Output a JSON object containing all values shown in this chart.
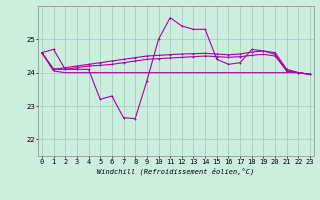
{
  "xlabel": "Windchill (Refroidissement éolien,°C)",
  "background_color": "#cceedd",
  "grid_color": "#aacccc",
  "line_color": "#aa00aa",
  "x_ticks": [
    0,
    1,
    2,
    3,
    4,
    5,
    6,
    7,
    8,
    9,
    10,
    11,
    12,
    13,
    14,
    15,
    16,
    17,
    18,
    19,
    20,
    21,
    22,
    23
  ],
  "y_ticks": [
    22,
    23,
    24,
    25
  ],
  "ylim": [
    21.5,
    26.0
  ],
  "xlim": [
    -0.3,
    23.3
  ],
  "line1": [
    24.6,
    24.7,
    24.1,
    24.1,
    24.1,
    23.2,
    23.3,
    22.65,
    22.62,
    23.75,
    25.0,
    25.65,
    25.4,
    25.3,
    25.3,
    24.4,
    24.25,
    24.3,
    24.7,
    24.65,
    24.55,
    24.05,
    24.0,
    23.95
  ],
  "line2": [
    24.6,
    24.05,
    24.0,
    24.0,
    24.0,
    24.0,
    24.0,
    24.0,
    24.0,
    24.0,
    24.0,
    24.0,
    24.0,
    24.0,
    24.0,
    24.0,
    24.0,
    24.0,
    24.0,
    24.0,
    24.0,
    24.0,
    24.0,
    23.95
  ],
  "line3": [
    24.6,
    24.1,
    24.15,
    24.2,
    24.25,
    24.3,
    24.35,
    24.4,
    24.45,
    24.5,
    24.52,
    24.54,
    24.56,
    24.57,
    24.58,
    24.56,
    24.54,
    24.56,
    24.62,
    24.65,
    24.6,
    24.1,
    24.0,
    23.95
  ],
  "line4": [
    24.6,
    24.1,
    24.1,
    24.15,
    24.2,
    24.22,
    24.25,
    24.3,
    24.35,
    24.4,
    24.42,
    24.44,
    24.46,
    24.48,
    24.5,
    24.48,
    24.46,
    24.48,
    24.52,
    24.55,
    24.5,
    24.05,
    24.0,
    23.95
  ]
}
